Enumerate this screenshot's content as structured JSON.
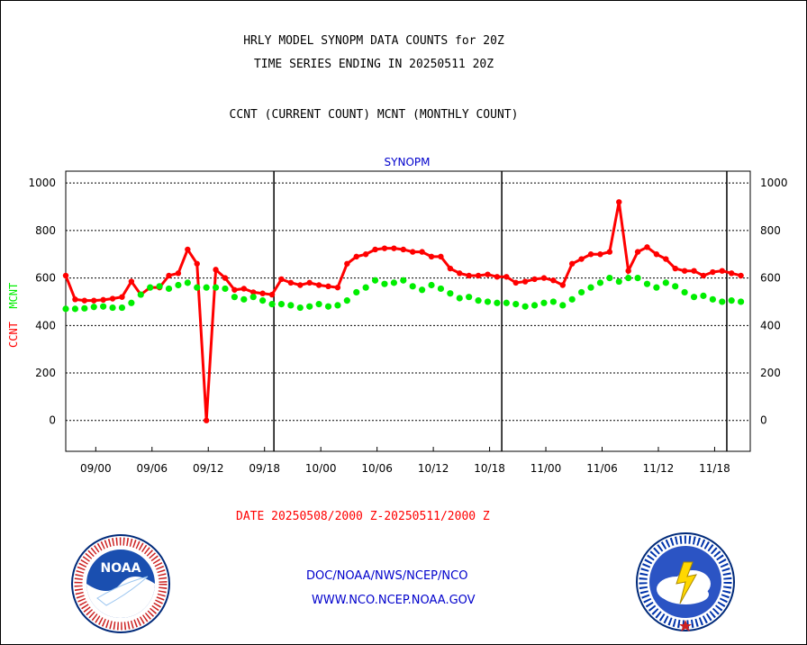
{
  "titles": {
    "line1": "HRLY MODEL SYNOPM DATA COUNTS for 20Z",
    "line2": "TIME SERIES ENDING IN 20250511 20Z",
    "line3": "CCNT (CURRENT COUNT) MCNT (MONTHLY COUNT)"
  },
  "footer": {
    "date_range": "DATE 20250508/2000 Z-20250511/2000 Z",
    "link1": "DOC/NOAA/NWS/NCEP/NCO",
    "link2": "WWW.NCO.NCEP.NOAA.GOV"
  },
  "logos": {
    "noaa": {
      "icon": "noaa-logo",
      "text": "NOAA",
      "ring_text": "NATIONAL OCEANIC AND ATMOSPHERIC ADMINISTRATION · U.S. DEPARTMENT OF COMMERCE"
    },
    "nws": {
      "icon": "nws-logo",
      "ring_text": "NATIONAL WEATHER SERVICE"
    }
  },
  "colors": {
    "ccnt": "#ff0000",
    "mcnt": "#00ee00",
    "title": "#0000cc"
  },
  "chart_data": {
    "type": "line",
    "title": "SYNOPM",
    "ylabel": "CCNT MCNT",
    "ylabel_parts": [
      {
        "text": "CCNT",
        "color": "#ff0000"
      },
      {
        "text": "MCNT",
        "color": "#00ee00"
      }
    ],
    "ylim": [
      -130,
      1050
    ],
    "yticks": [
      0,
      200,
      400,
      600,
      800,
      1000
    ],
    "xlim": [
      0,
      73
    ],
    "xticks": [
      {
        "x": 3.2,
        "label": "09/00"
      },
      {
        "x": 9.2,
        "label": "09/06"
      },
      {
        "x": 15.2,
        "label": "09/12"
      },
      {
        "x": 21.2,
        "label": "09/18"
      },
      {
        "x": 27.2,
        "label": "10/00"
      },
      {
        "x": 33.2,
        "label": "10/06"
      },
      {
        "x": 39.2,
        "label": "10/12"
      },
      {
        "x": 45.2,
        "label": "10/18"
      },
      {
        "x": 51.2,
        "label": "11/00"
      },
      {
        "x": 57.2,
        "label": "11/06"
      },
      {
        "x": 63.2,
        "label": "11/12"
      },
      {
        "x": 69.2,
        "label": "11/18"
      }
    ],
    "day_boundaries": [
      22.2,
      46.5,
      70.5
    ],
    "grid": "horizontal dotted",
    "series": [
      {
        "name": "CCNT",
        "color": "#ff0000",
        "values": [
          610,
          510,
          505,
          505,
          508,
          513,
          520,
          585,
          530,
          560,
          560,
          610,
          620,
          720,
          660,
          0,
          635,
          600,
          550,
          555,
          540,
          535,
          530,
          595,
          580,
          570,
          580,
          570,
          565,
          560,
          660,
          690,
          700,
          720,
          725,
          725,
          720,
          710,
          710,
          690,
          690,
          640,
          620,
          610,
          610,
          615,
          605,
          605,
          580,
          585,
          595,
          600,
          590,
          570,
          660,
          680,
          700,
          700,
          710,
          920,
          630,
          710,
          730,
          700,
          680,
          640,
          630,
          630,
          610,
          625,
          630,
          620,
          610
        ]
      },
      {
        "name": "MCNT",
        "color": "#00ee00",
        "values": [
          470,
          470,
          472,
          478,
          480,
          475,
          475,
          495,
          530,
          560,
          565,
          555,
          570,
          580,
          560,
          560,
          560,
          555,
          520,
          510,
          520,
          505,
          490,
          490,
          485,
          475,
          480,
          490,
          480,
          485,
          505,
          540,
          560,
          590,
          575,
          580,
          590,
          565,
          550,
          570,
          555,
          535,
          515,
          520,
          505,
          500,
          495,
          495,
          490,
          480,
          485,
          495,
          500,
          485,
          510,
          540,
          560,
          580,
          600,
          585,
          600,
          600,
          575,
          560,
          580,
          565,
          540,
          520,
          525,
          510,
          500,
          505,
          500
        ]
      }
    ]
  }
}
